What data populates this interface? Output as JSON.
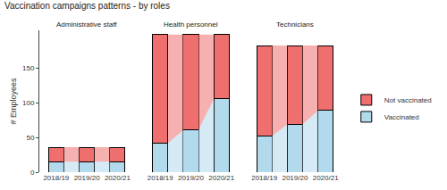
{
  "chart_data": {
    "type": "bar",
    "title": "Vaccination campaigns patterns - by roles",
    "y_label": "# Employees",
    "categories": [
      "2018/19",
      "2019/20",
      "2020/21"
    ],
    "stacked": true,
    "grid": false,
    "legend": "right",
    "ylim": [
      0,
      205
    ],
    "yticks": [
      0,
      50,
      100,
      150
    ],
    "facets": [
      {
        "title": "Administrative staff",
        "series": [
          {
            "name": "Vaccinated",
            "color": "#b3d9ec",
            "values": [
              15,
              15,
              15
            ]
          },
          {
            "name": "Not vaccinated",
            "color": "#ef6f6f",
            "values": [
              21,
              21,
              21
            ]
          }
        ]
      },
      {
        "title": "Health personnel",
        "series": [
          {
            "name": "Vaccinated",
            "color": "#b3d9ec",
            "values": [
              42,
              61,
              106
            ]
          },
          {
            "name": "Not vaccinated",
            "color": "#ef6f6f",
            "values": [
              157,
              138,
              93
            ]
          }
        ]
      },
      {
        "title": "Technicians",
        "series": [
          {
            "name": "Vaccinated",
            "color": "#b3d9ec",
            "values": [
              52,
              69,
              89
            ]
          },
          {
            "name": "Not vaccinated",
            "color": "#ef6f6f",
            "values": [
              131,
              114,
              94
            ]
          }
        ]
      }
    ]
  }
}
